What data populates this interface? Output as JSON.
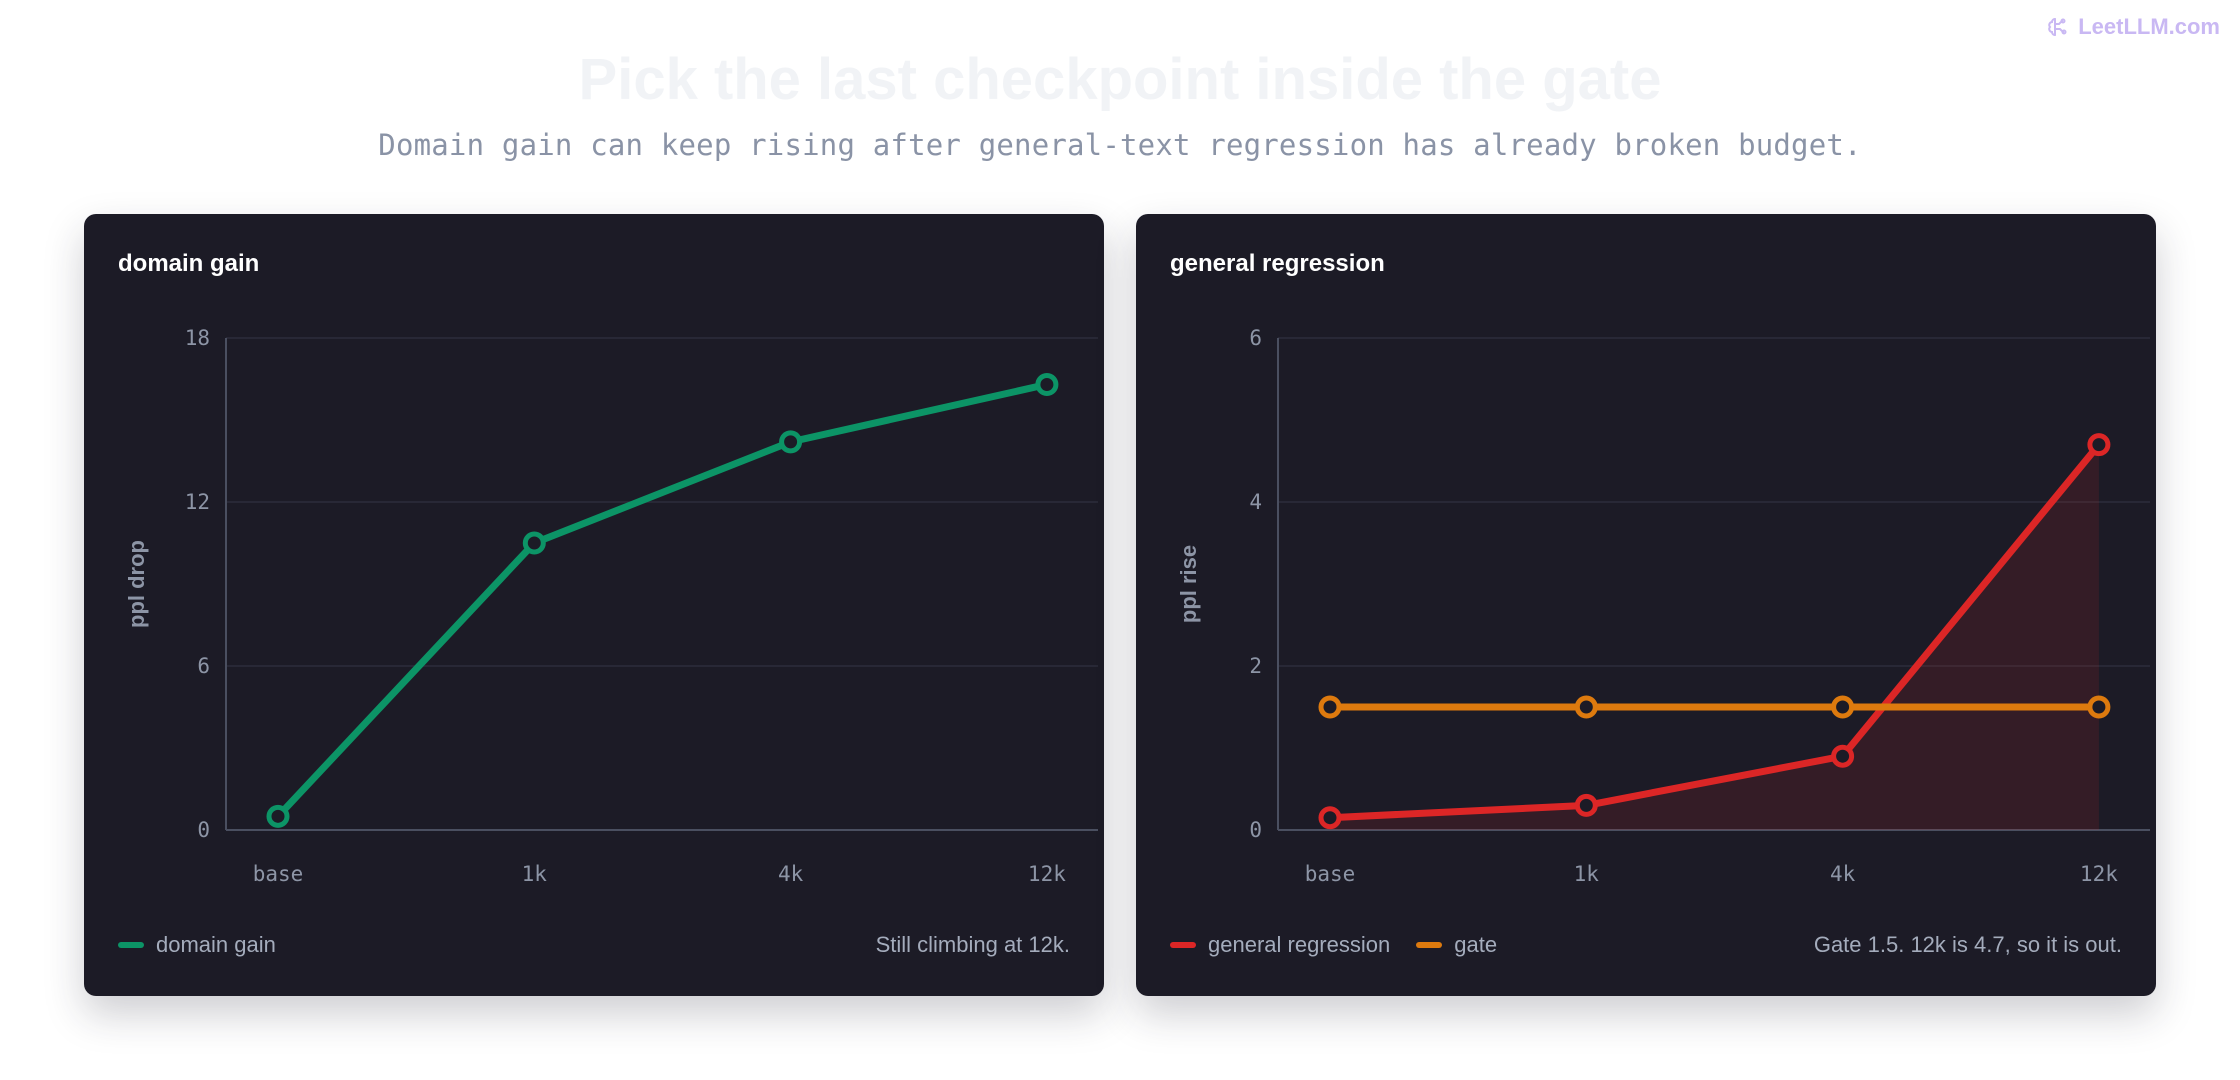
{
  "brand": {
    "name": "LeetLLM.com",
    "icon": "brain-icon",
    "color": "#c9b8f3"
  },
  "title": "Pick the last checkpoint inside the gate",
  "subtitle": "Domain gain can keep rising after general-text regression has already broken budget.",
  "chart_data": [
    {
      "type": "line",
      "title": "domain gain",
      "categories": [
        "base",
        "1k",
        "4k",
        "12k"
      ],
      "xlabel": "",
      "ylabel": "ppl drop",
      "ylim": [
        0,
        18
      ],
      "yticks": [
        0,
        6,
        12,
        18
      ],
      "grid": true,
      "legend": "bottom-left",
      "series": [
        {
          "name": "domain gain",
          "values": [
            0.5,
            10.5,
            14.2,
            16.3
          ],
          "color": "#0c9466",
          "fill": false
        }
      ],
      "note": "Still climbing at 12k."
    },
    {
      "type": "line",
      "title": "general regression",
      "categories": [
        "base",
        "1k",
        "4k",
        "12k"
      ],
      "xlabel": "",
      "ylabel": "ppl rise",
      "ylim": [
        0,
        6
      ],
      "yticks": [
        0,
        2,
        4,
        6
      ],
      "grid": true,
      "legend": "bottom-left",
      "series": [
        {
          "name": "general regression",
          "values": [
            0.15,
            0.3,
            0.9,
            4.7
          ],
          "color": "#dc2626",
          "fill": true
        },
        {
          "name": "gate",
          "values": [
            1.5,
            1.5,
            1.5,
            1.5
          ],
          "color": "#dd7a0e",
          "fill": false
        }
      ],
      "note": "Gate 1.5. 12k is 4.7, so it is out."
    }
  ]
}
